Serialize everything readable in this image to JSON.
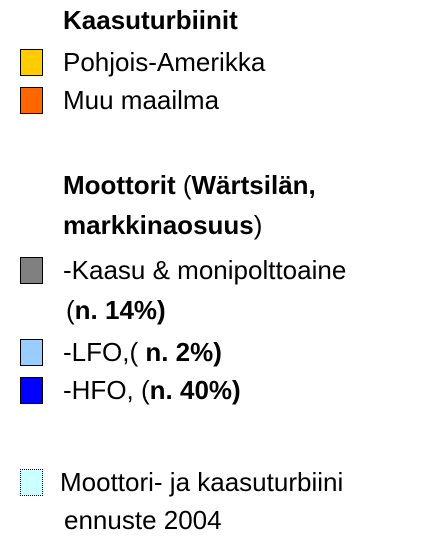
{
  "title": "Kaasuturbiinit",
  "gas_turbines": [
    {
      "label": "Pohjois-Amerikka",
      "color": "#ffcc00"
    },
    {
      "label": "Muu maailma",
      "color": "#ff6600"
    }
  ],
  "engines_heading": [
    [
      {
        "text": "Moottorit",
        "bold": true
      },
      {
        "text": " (",
        "bold": false
      },
      {
        "text": "Wärtsilän,",
        "bold": true
      }
    ],
    [
      {
        "text": "markkinaosuus",
        "bold": true
      },
      {
        "text": ")",
        "bold": false
      }
    ]
  ],
  "engines": [
    {
      "color": "#808080",
      "lines": [
        [
          {
            "text": "-Kaasu & monipolttoaine",
            "bold": false
          }
        ],
        [
          {
            "text": "(",
            "bold": false
          },
          {
            "text": "n. 14%)",
            "bold": true
          }
        ]
      ]
    },
    {
      "color": "#99ccff",
      "lines": [
        [
          {
            "text": "-LFO,( ",
            "bold": false
          },
          {
            "text": "n. 2%)",
            "bold": true
          }
        ]
      ]
    },
    {
      "color": "#0000ff",
      "lines": [
        [
          {
            "text": "-HFO, (",
            "bold": false
          },
          {
            "text": "n. 40%)",
            "bold": true
          }
        ]
      ]
    }
  ],
  "forecast": {
    "color": "#ccffff",
    "lines": [
      "Moottori- ja kaasuturbiini",
      "ennuste 2004"
    ]
  }
}
